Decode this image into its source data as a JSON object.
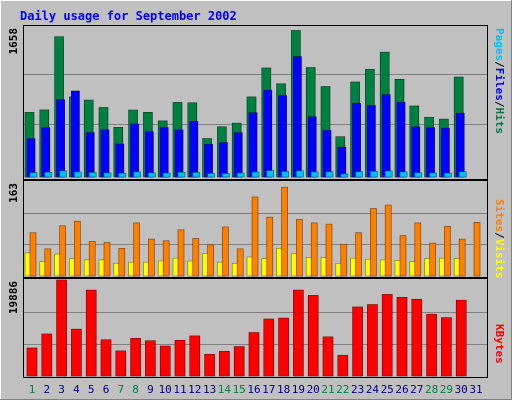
{
  "chart_data": [
    {
      "type": "bar",
      "title": "Daily usage for September 2002",
      "ymax_label": "1658",
      "ylim": [
        0,
        1658
      ],
      "categories": [
        "1",
        "2",
        "3",
        "4",
        "5",
        "6",
        "7",
        "8",
        "9",
        "10",
        "11",
        "12",
        "13",
        "14",
        "15",
        "16",
        "17",
        "18",
        "19",
        "20",
        "21",
        "22",
        "23",
        "24",
        "25",
        "26",
        "27",
        "28",
        "29",
        "30",
        "31"
      ],
      "weekend_days": [
        "1",
        "7",
        "8",
        "14",
        "15",
        "21",
        "22",
        "28",
        "29"
      ],
      "legend": [
        "Pages",
        "Files",
        "Hits"
      ],
      "series": [
        {
          "name": "Hits",
          "values": [
            715,
            741,
            1550,
            885,
            850,
            768,
            549,
            740,
            715,
            620,
            825,
            820,
            425,
            555,
            595,
            885,
            1205,
            1030,
            1620,
            1210,
            1000,
            445,
            1050,
            1190,
            1380,
            1080,
            785,
            660,
            640,
            1105,
            0
          ]
        },
        {
          "name": "Files",
          "values": [
            425,
            545,
            855,
            950,
            490,
            520,
            365,
            585,
            500,
            545,
            520,
            615,
            360,
            380,
            490,
            710,
            960,
            900,
            1330,
            665,
            515,
            330,
            815,
            790,
            910,
            825,
            555,
            545,
            540,
            705,
            0
          ]
        },
        {
          "name": "Pages",
          "values": [
            49,
            52,
            68,
            56,
            50,
            45,
            42,
            56,
            46,
            44,
            52,
            50,
            39,
            38,
            44,
            55,
            71,
            60,
            68,
            56,
            58,
            33,
            59,
            62,
            66,
            57,
            48,
            45,
            43,
            58,
            0
          ]
        }
      ]
    },
    {
      "type": "bar",
      "ymax_label": "163",
      "ylim": [
        0,
        163
      ],
      "legend": [
        "Sites",
        "Visits"
      ],
      "series": [
        {
          "name": "Visits",
          "values": [
            40,
            25,
            38,
            30,
            28,
            28,
            22,
            24,
            24,
            26,
            31,
            26,
            39,
            24,
            22,
            33,
            30,
            48,
            39,
            32,
            32,
            22,
            31,
            29,
            28,
            27,
            25,
            30,
            31,
            30,
            0
          ]
        },
        {
          "name": "Sites",
          "values": [
            75,
            47,
            87,
            95,
            60,
            58,
            48,
            92,
            64,
            61,
            80,
            65,
            54,
            85,
            47,
            137,
            102,
            154,
            98,
            92,
            90,
            55,
            75,
            117,
            123,
            70,
            92,
            57,
            86,
            64,
            93
          ]
        }
      ]
    },
    {
      "type": "bar",
      "ymax_label": "19886",
      "ylim": [
        0,
        19886
      ],
      "legend": [
        "KBytes"
      ],
      "series": [
        {
          "name": "KBytes",
          "values": [
            5800,
            8700,
            19886,
            9700,
            17800,
            7500,
            5200,
            7800,
            7300,
            6200,
            7400,
            8300,
            4500,
            5100,
            6100,
            9000,
            11800,
            12000,
            17800,
            16700,
            8100,
            4300,
            14300,
            14800,
            16900,
            16300,
            15900,
            12800,
            12100,
            15700,
            0
          ]
        }
      ]
    }
  ],
  "colors": {
    "background": "#c0c0c0",
    "title": "#0000ff",
    "hits": "#008040",
    "files": "#0000ff",
    "pages": "#00c0ff",
    "sites": "#ff8000",
    "visits": "#ffff00",
    "kbytes": "#ff0000",
    "weekend_label": "#008040",
    "weekday_label": "#000080"
  }
}
